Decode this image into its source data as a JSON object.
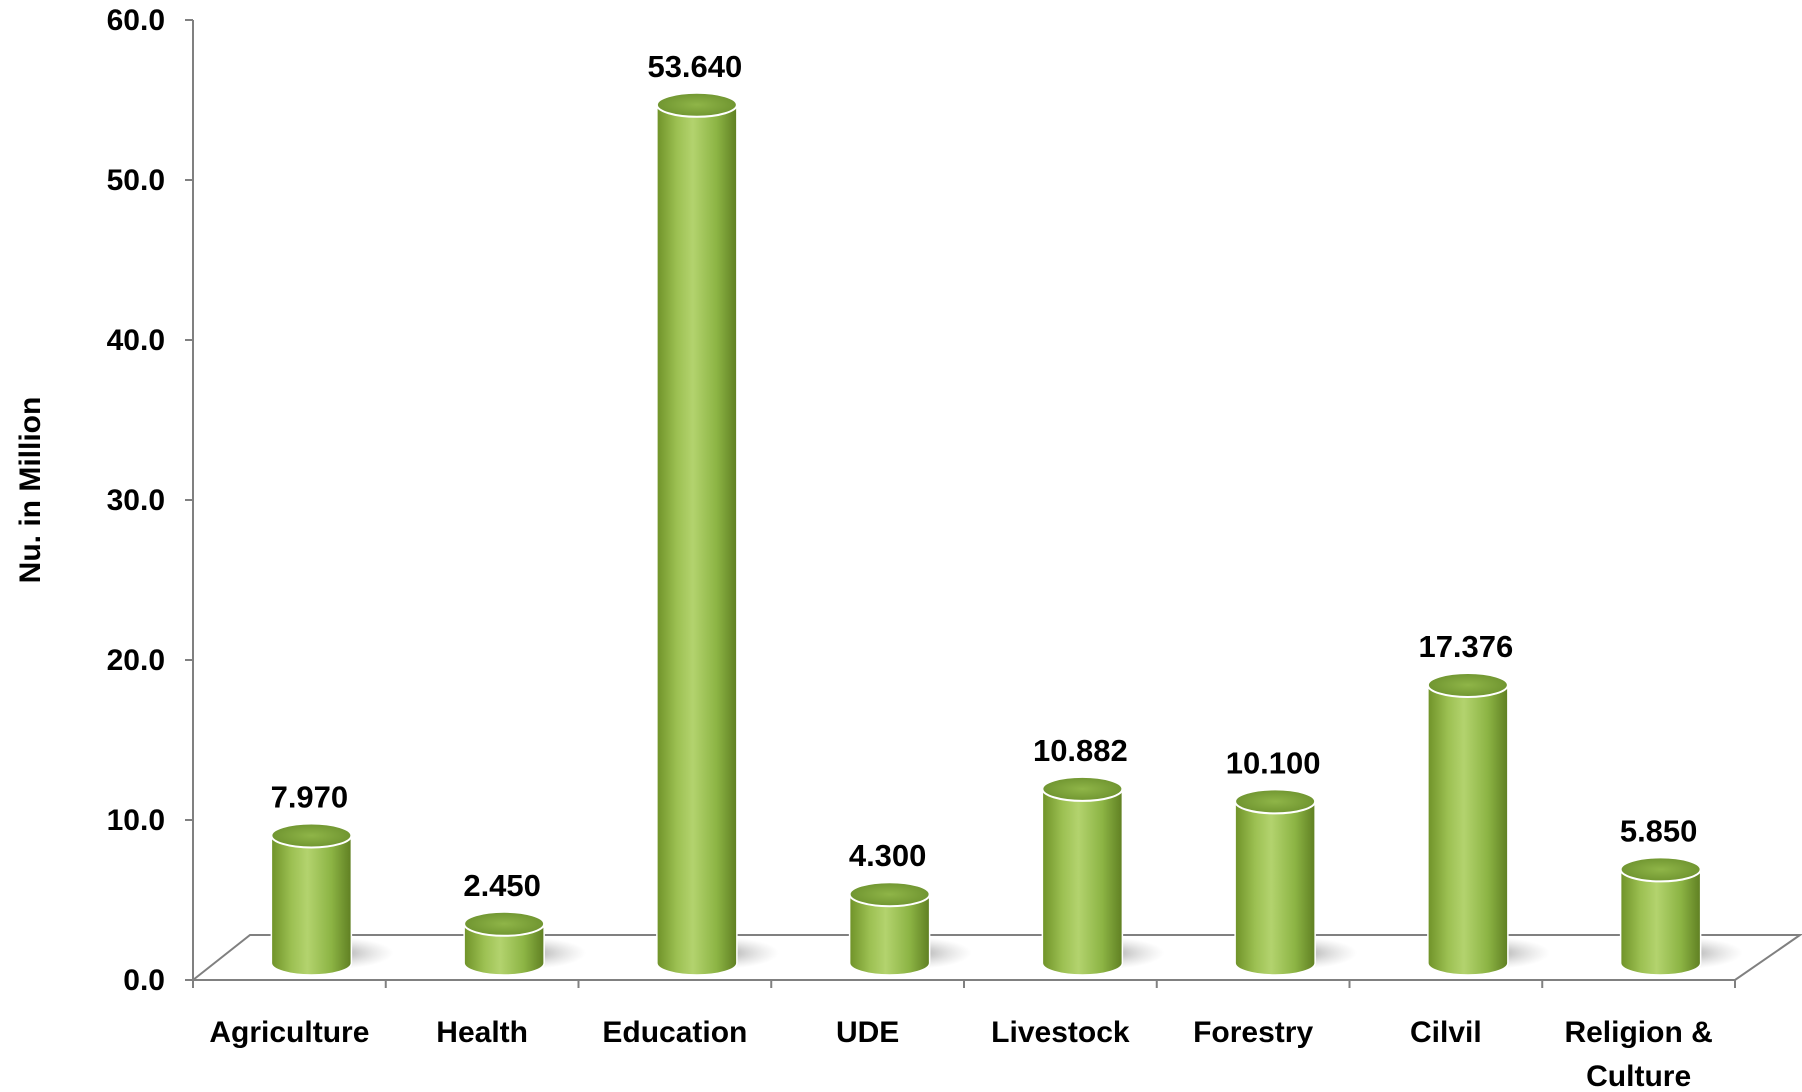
{
  "chart_data": {
    "type": "bar",
    "title": "",
    "xlabel": "",
    "ylabel": "Nu. in Million",
    "ylim": [
      0,
      60
    ],
    "yticks": [
      "0.0",
      "10.0",
      "20.0",
      "30.0",
      "40.0",
      "50.0",
      "60.0"
    ],
    "categories": [
      [
        "Agriculture"
      ],
      [
        "Health"
      ],
      [
        "Education"
      ],
      [
        "UDE"
      ],
      [
        "Livestock"
      ],
      [
        "Forestry"
      ],
      [
        "Cilvil"
      ],
      [
        "Religion &",
        "Culture"
      ]
    ],
    "values": [
      7.97,
      2.45,
      53.64,
      4.3,
      10.882,
      10.1,
      17.376,
      5.85
    ],
    "data_labels": [
      "7.970",
      "2.450",
      "53.640",
      "4.300",
      "10.882",
      "10.100",
      "17.376",
      "5.850"
    ],
    "bar_shape": "cylinder",
    "grid": false,
    "legend": "none",
    "colors": {
      "bar_light": "#a8c95f",
      "bar_mid": "#8cb444",
      "bar_dark": "#5f7f22",
      "bar_top": "#7fa53a",
      "axis": "#808080",
      "floor_shadow": "#a0a0a0"
    }
  }
}
